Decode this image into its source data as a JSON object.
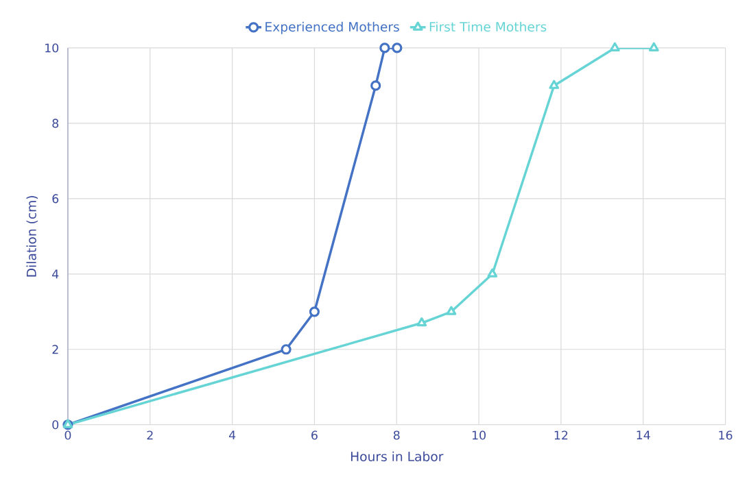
{
  "chart_data": {
    "type": "line",
    "xlabel": "Hours in Labor",
    "ylabel": "Dilation (cm)",
    "xlim": [
      0,
      16
    ],
    "ylim": [
      0,
      10
    ],
    "xticks": [
      0,
      2,
      4,
      6,
      8,
      10,
      12,
      14,
      16
    ],
    "yticks": [
      0,
      2,
      4,
      6,
      8,
      10
    ],
    "grid": true,
    "legend": "top",
    "series": [
      {
        "name": "Experienced Mothers",
        "color": "#4472c4",
        "marker": "circle",
        "x": [
          0,
          5.31,
          6.0,
          7.49,
          7.71,
          8.01
        ],
        "values": [
          0,
          2,
          3,
          9,
          10,
          10
        ]
      },
      {
        "name": "First Time Mothers",
        "color": "#66d4d4",
        "marker": "triangle",
        "x": [
          0,
          8.61,
          9.33,
          10.33,
          11.83,
          13.31,
          14.26
        ],
        "values": [
          0,
          2.7,
          3,
          4,
          9,
          10,
          10
        ]
      }
    ]
  }
}
